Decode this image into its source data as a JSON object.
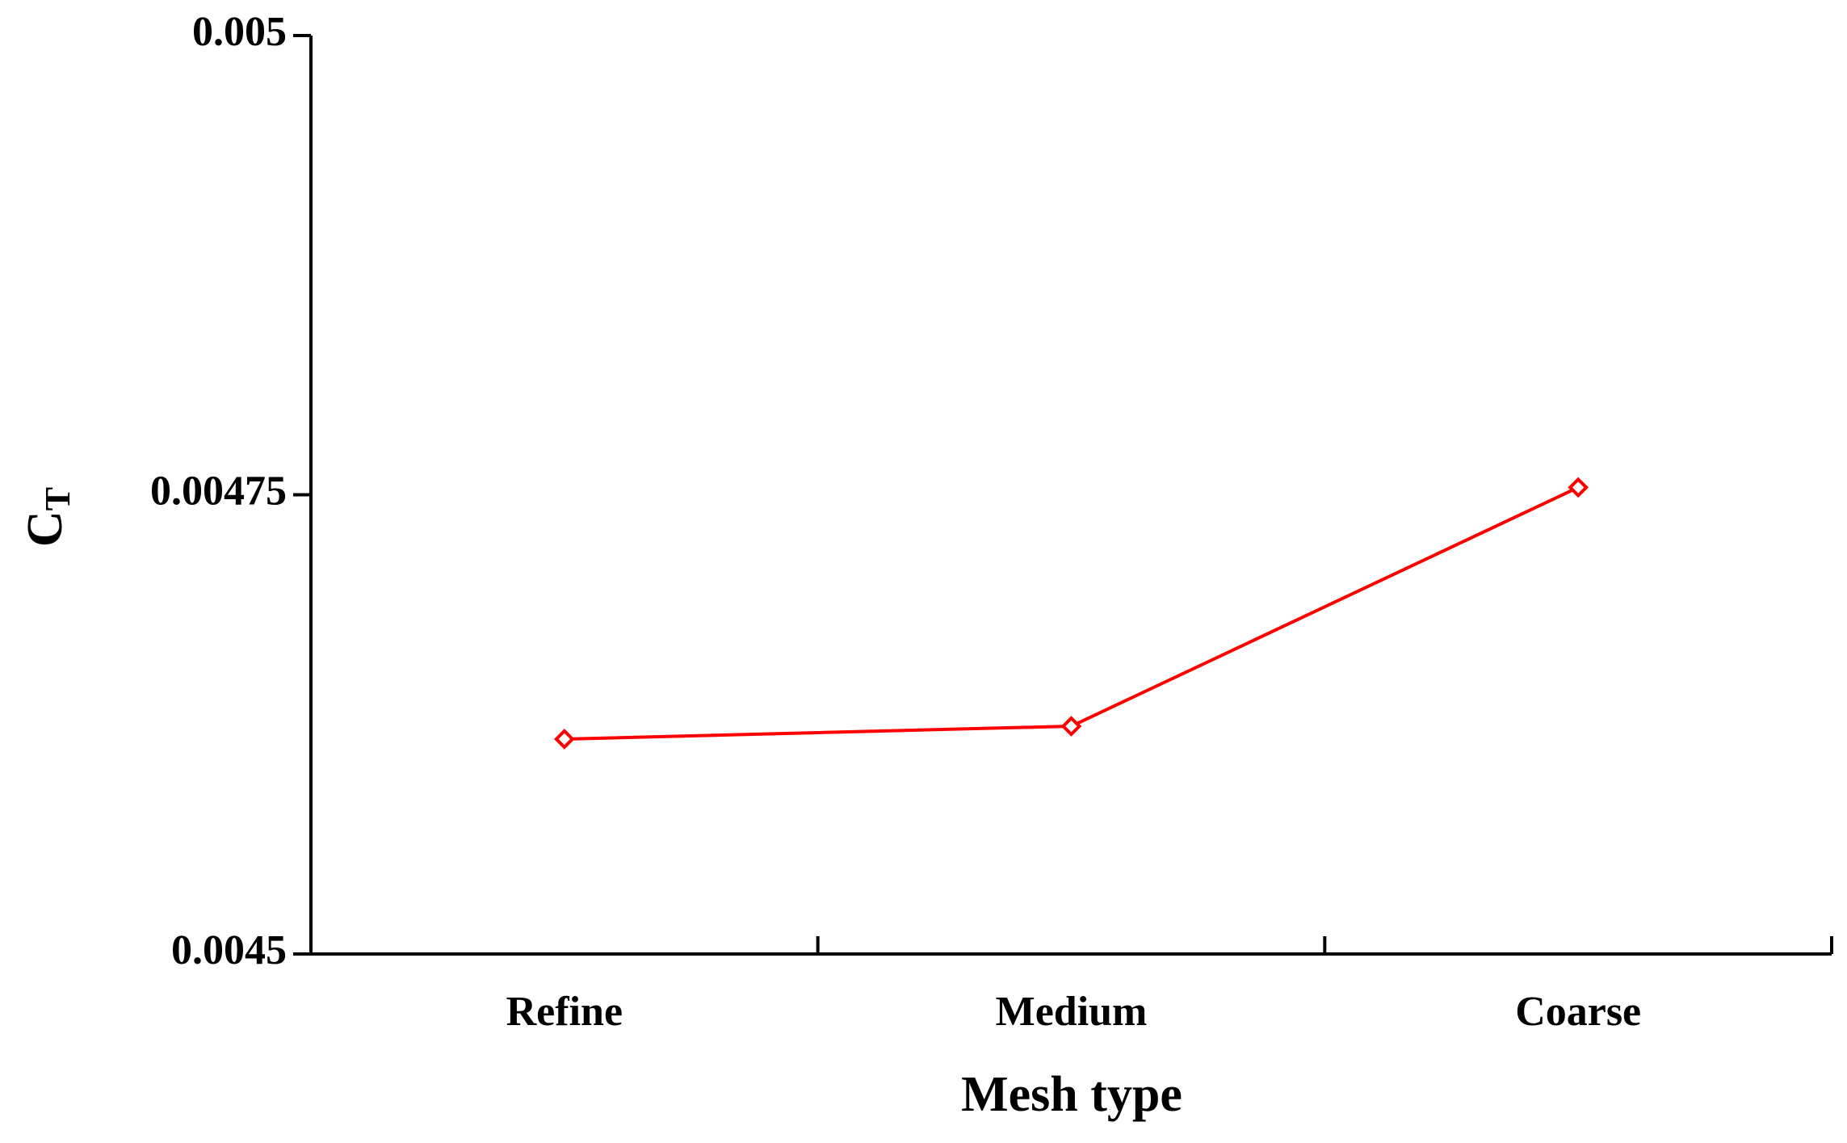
{
  "chart_data": {
    "type": "line",
    "xlabel": "Mesh type",
    "ylabel": "C",
    "ylabel_subscript": "T",
    "categories": [
      "Refine",
      "Medium",
      "Coarse"
    ],
    "series": [
      {
        "color": "#ff0000",
        "values": [
          0.004617,
          0.004624,
          0.004754
        ]
      }
    ],
    "ylim": [
      0.0045,
      0.005
    ],
    "yticks": [
      0.0045,
      0.00475,
      0.005
    ],
    "grid": false
  }
}
